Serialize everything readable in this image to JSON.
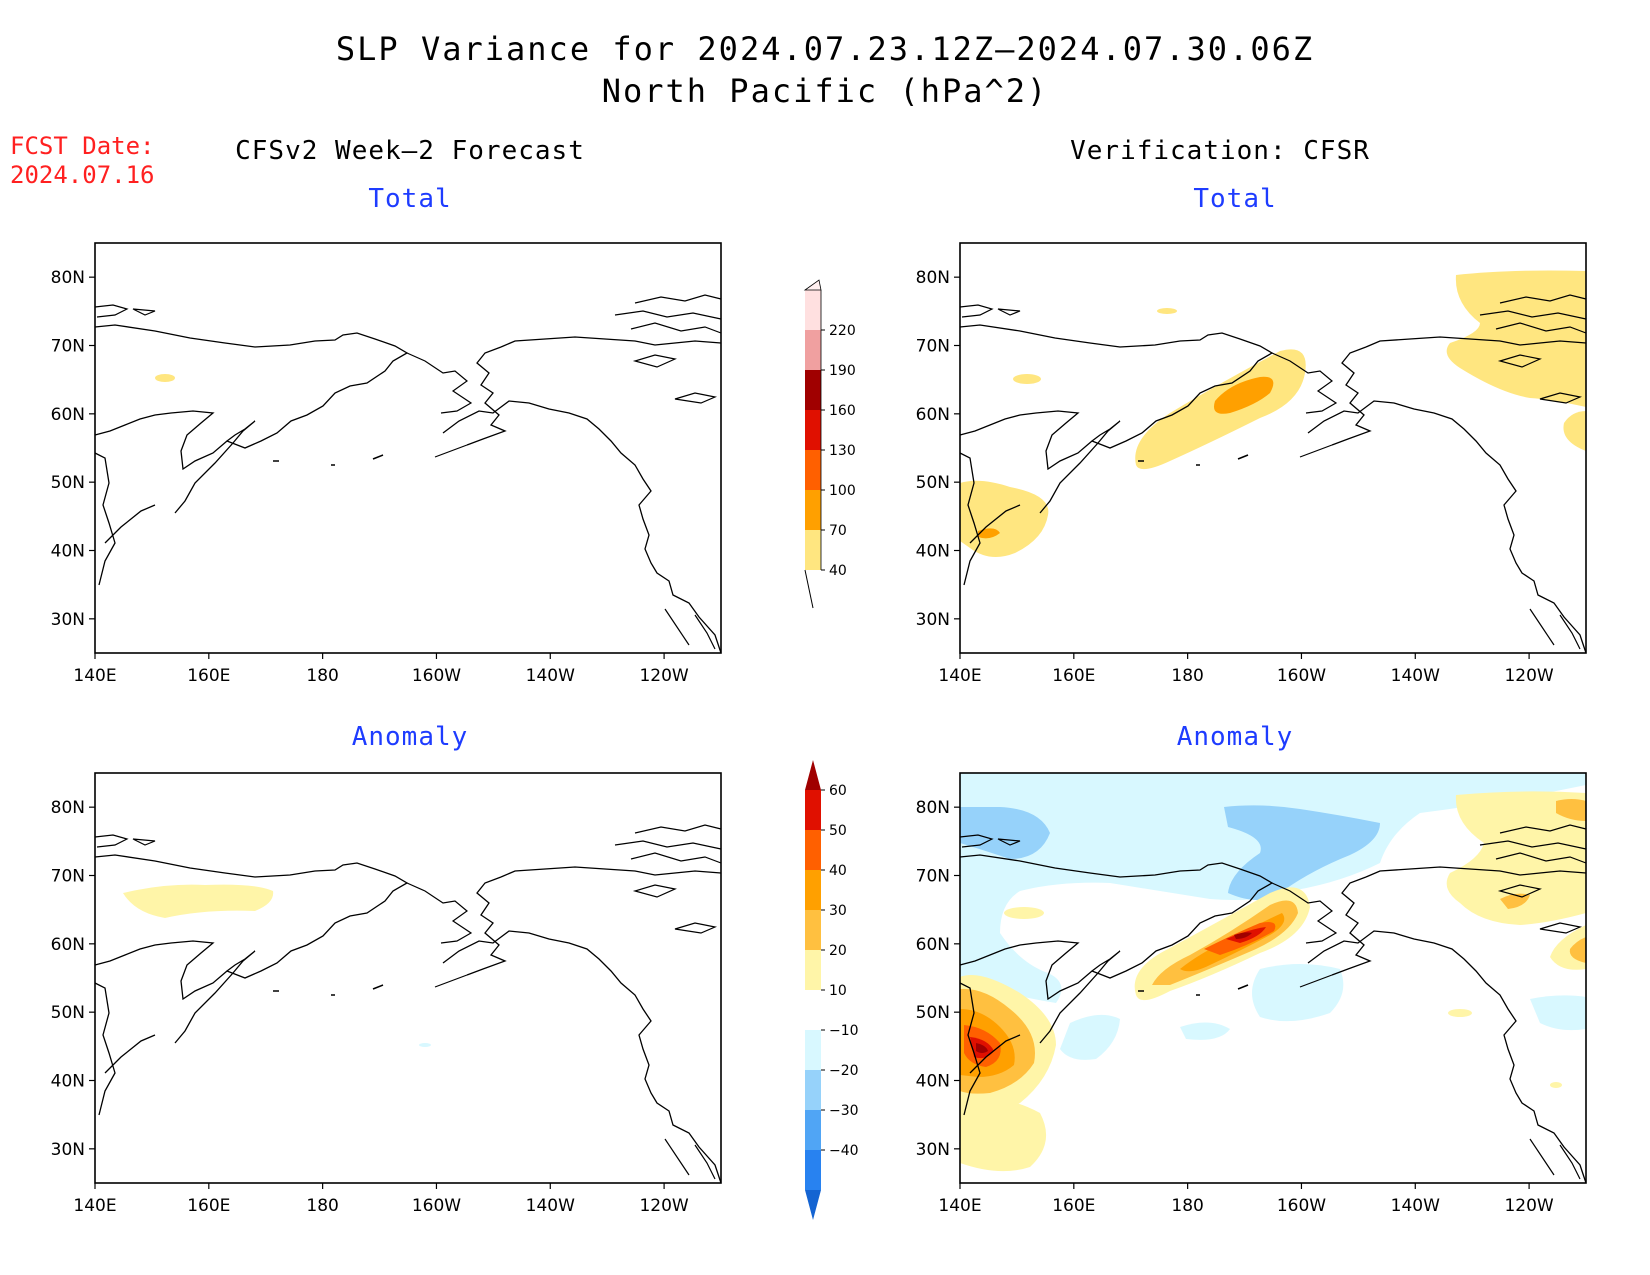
{
  "title": {
    "line1": "SLP Variance for 2024.07.23.12Z–2024.07.30.06Z",
    "line2": "North Pacific (hPa^2)"
  },
  "fcst": {
    "label": "FCST Date:",
    "date": "2024.07.16"
  },
  "columns": {
    "left": "CFSv2 Week–2 Forecast",
    "right": "Verification: CFSR"
  },
  "panel_titles": {
    "total": "Total",
    "anomaly": "Anomaly"
  },
  "axes": {
    "lat_ticks": [
      "80N",
      "70N",
      "60N",
      "50N",
      "40N",
      "30N"
    ],
    "lat_values": [
      80,
      70,
      60,
      50,
      40,
      30
    ],
    "lon_ticks": [
      "140E",
      "160E",
      "180",
      "160W",
      "140W",
      "120W"
    ],
    "lon_values": [
      140,
      160,
      180,
      200,
      220,
      240
    ],
    "lon_range": [
      140,
      250
    ],
    "lat_range": [
      25,
      85
    ]
  },
  "colorbar_total": {
    "labels": [
      "40",
      "70",
      "100",
      "130",
      "160",
      "190",
      "220"
    ],
    "colors": [
      "#ffe680",
      "#ffa000",
      "#ff6000",
      "#e01000",
      "#a00000",
      "#f0a0a0",
      "#ffe0e0"
    ]
  },
  "colorbar_anomaly": {
    "labels": [
      "60",
      "50",
      "40",
      "30",
      "20",
      "10",
      "−10",
      "−20",
      "−30",
      "−40"
    ],
    "colors_top_down": [
      "#a00000",
      "#e01000",
      "#ff6000",
      "#ffa000",
      "#ffc040",
      "#fff5a8",
      "#ffffff",
      "#d8f8ff",
      "#96d2fa",
      "#50a5f5",
      "#2882f0",
      "#1464d2"
    ]
  }
}
